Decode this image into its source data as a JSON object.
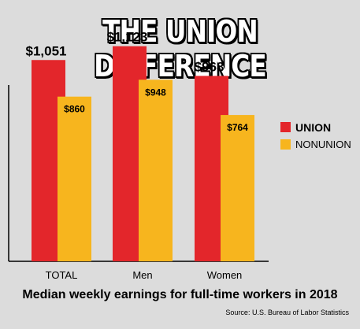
{
  "title": "THE UNION DIFFERENCE",
  "subtitle": "Median weekly earnings for full-time workers in 2018",
  "source": "Source: U.S. Bureau of Labor Statistics",
  "legend": {
    "union": "UNION",
    "nonunion": "NONUNION"
  },
  "colors": {
    "union": "#e3262b",
    "nonunion": "#f7b51e",
    "background": "#dcdcdc"
  },
  "chart_data": {
    "type": "bar",
    "categories": [
      "TOTAL",
      "Men",
      "Women"
    ],
    "series": [
      {
        "name": "UNION",
        "values": [
          1051,
          1123,
          968
        ],
        "labels": [
          "$1,051",
          "$1,123",
          "$968"
        ]
      },
      {
        "name": "NONUNION",
        "values": [
          860,
          948,
          764
        ],
        "labels": [
          "$860",
          "$948",
          "$764"
        ]
      }
    ],
    "ylim": [
      0,
      1200
    ],
    "grid": false,
    "legend_position": "right"
  }
}
